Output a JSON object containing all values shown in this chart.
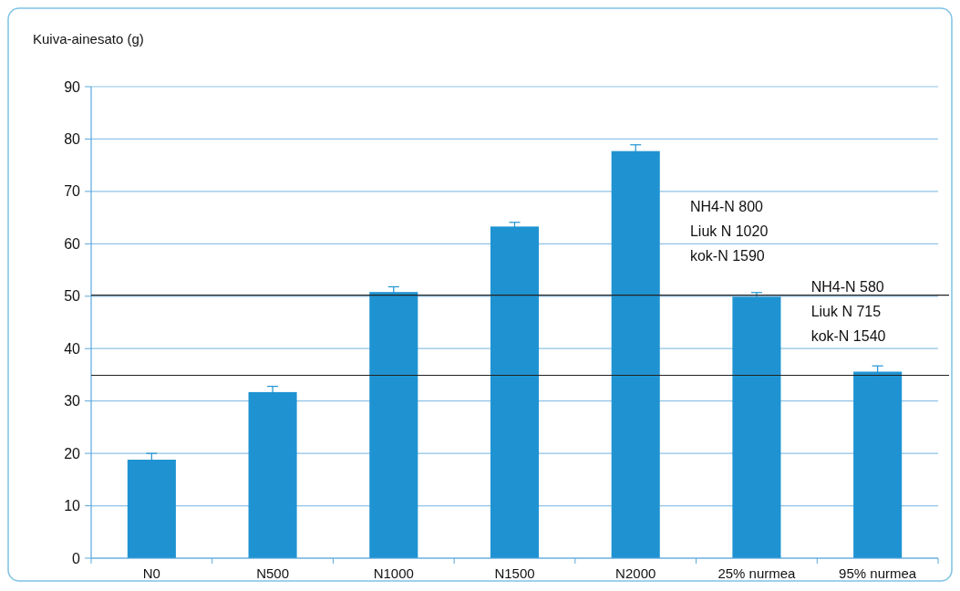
{
  "chart_data": {
    "type": "bar",
    "ylabel": "Kuiva-ainesato (g)",
    "categories": [
      "N0",
      "N500",
      "N1000",
      "N1500",
      "N2000",
      "25% nurmea",
      "95% nurmea"
    ],
    "values": [
      18.8,
      31.7,
      50.8,
      63.3,
      77.7,
      49.9,
      35.6
    ],
    "errors": [
      1.2,
      1.1,
      1.0,
      0.8,
      1.2,
      0.8,
      1.1
    ],
    "color": "#1f93d2",
    "ylim": [
      0,
      90
    ],
    "yticks": [
      0,
      10,
      20,
      30,
      40,
      50,
      60,
      70,
      80,
      90
    ],
    "grid": "y",
    "ref_lines": [
      {
        "axis": "y",
        "value": 50.2,
        "label": "NH4-N 800\nLiuk N 1020\nkok-N 1590",
        "color": "#222222"
      },
      {
        "axis": "y",
        "value": 34.9,
        "label": "NH4-N 580\nLiuk N 715\nkok-N 1540",
        "color": "#222222"
      }
    ]
  }
}
